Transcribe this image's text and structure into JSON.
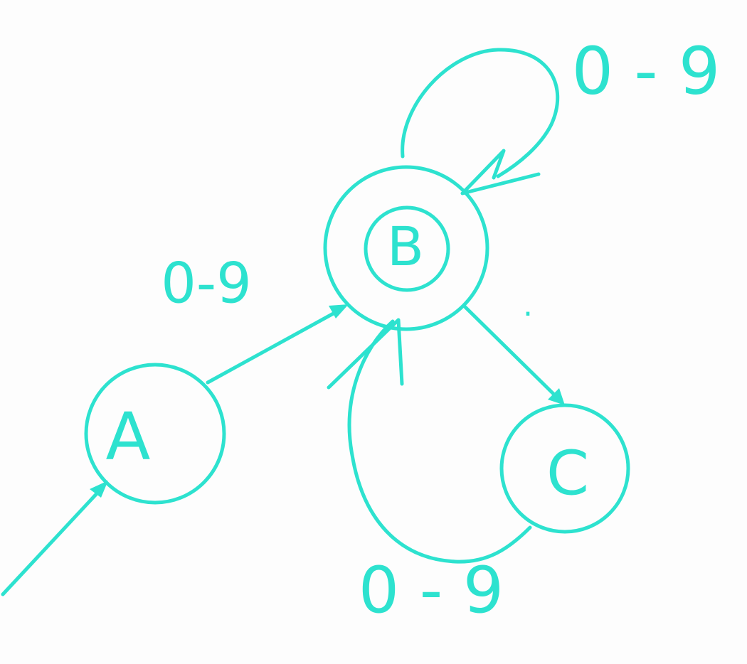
{
  "colors": {
    "ink": "#2de2cf",
    "background": "#fdfdfd"
  },
  "states": {
    "a": {
      "label": "A",
      "start": true,
      "accepting": false
    },
    "b": {
      "label": "B",
      "start": false,
      "accepting": true
    },
    "c": {
      "label": "C",
      "start": false,
      "accepting": false
    }
  },
  "transitions": {
    "a_to_b": {
      "label": "0-9"
    },
    "b_self_top": {
      "label": "0-9"
    },
    "b_to_c": {
      "label": "."
    },
    "c_to_b": {
      "label": "0 - 9"
    },
    "top_loop_label": {
      "label": "0 - 9"
    }
  }
}
